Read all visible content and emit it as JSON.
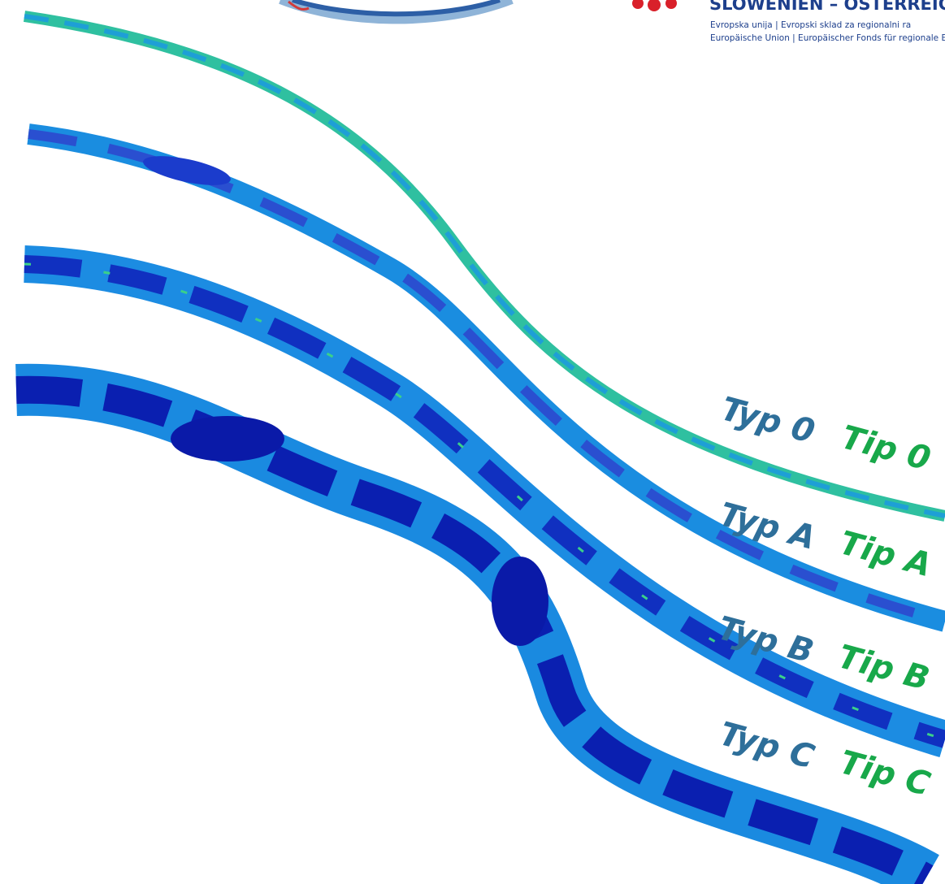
{
  "header": {
    "title": "SLOWENIEN – OSTERREIC",
    "line1": "Evropska unija  |  Evropski sklad za regionalni ra",
    "line2": "Europäische Union | Europäischer Fonds für regionale Entwic"
  },
  "labels": [
    {
      "typ": "Typ 0",
      "tip": "Tip 0"
    },
    {
      "typ": "Typ A",
      "tip": "Tip A"
    },
    {
      "typ": "Typ B",
      "tip": "Tip B"
    },
    {
      "typ": "Typ C",
      "tip": "Tip C"
    }
  ]
}
